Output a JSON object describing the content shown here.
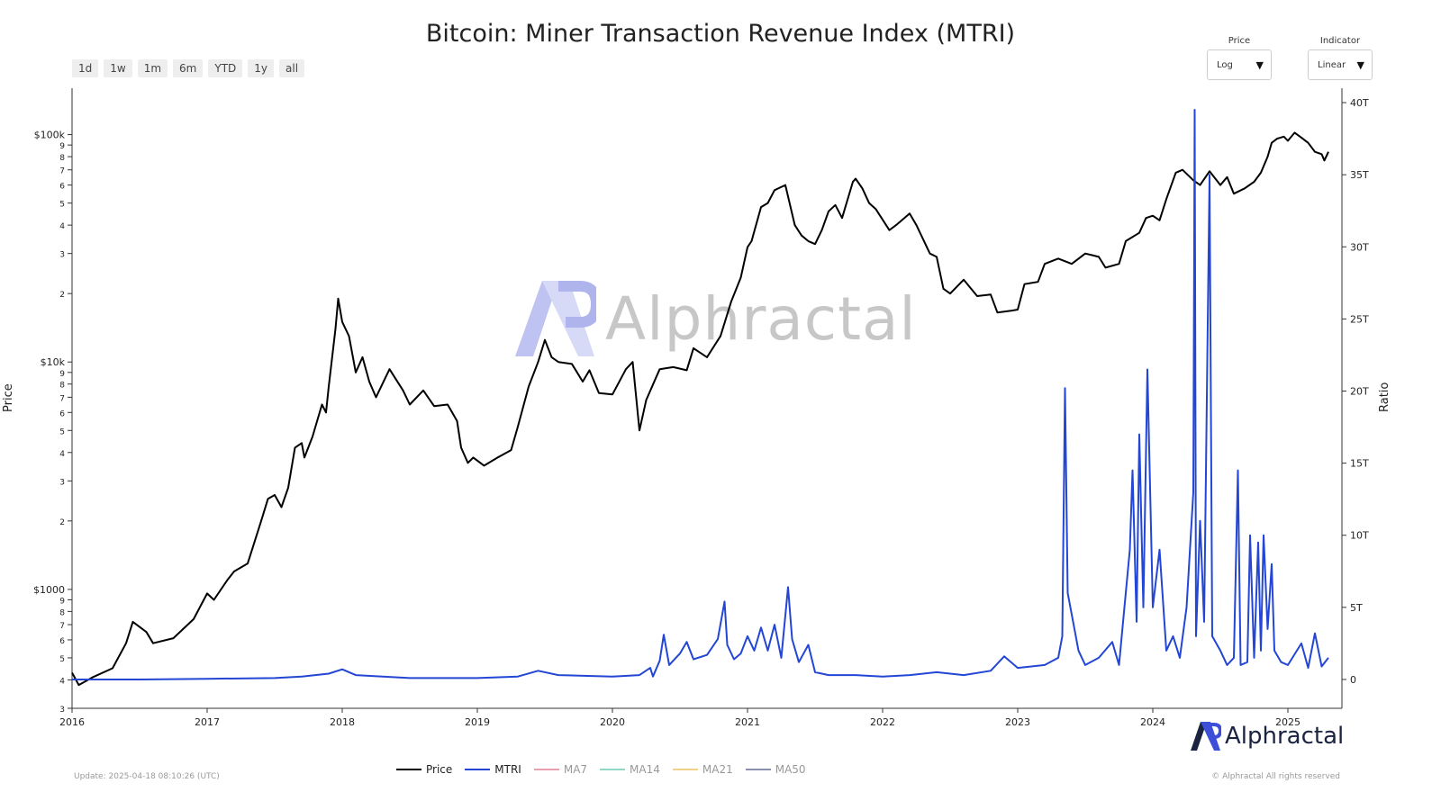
{
  "title": "Bitcoin: Miner Transaction Revenue Index (MTRI)",
  "range_buttons": [
    "1d",
    "1w",
    "1m",
    "6m",
    "YTD",
    "1y",
    "all"
  ],
  "price_select": {
    "label": "Price",
    "value": "Log"
  },
  "indicator_select": {
    "label": "Indicator",
    "value": "Linear"
  },
  "watermark": "Alphractal",
  "brand": "Alphractal",
  "update_text": "Update: 2025-04-18 08:10:26 (UTC)",
  "copyright": "© Alphractal All rights reserved",
  "colors": {
    "price": "#000000",
    "mtri": "#2346d4",
    "ma7": "#e8a0b0",
    "ma14": "#8fd8c8",
    "ma21": "#f2d28a",
    "ma50": "#8a8fb0",
    "brand": "#1a2340",
    "brand_accent": "#3d4fd8"
  },
  "legend": [
    {
      "name": "Price",
      "color": "#000000",
      "active": true
    },
    {
      "name": "MTRI",
      "color": "#2346d4",
      "active": true
    },
    {
      "name": "MA7",
      "color": "#e8a0b0",
      "active": false
    },
    {
      "name": "MA14",
      "color": "#8fd8c8",
      "active": false
    },
    {
      "name": "MA21",
      "color": "#f2d28a",
      "active": false
    },
    {
      "name": "MA50",
      "color": "#8a8fb0",
      "active": false
    }
  ],
  "chart_data": {
    "type": "line",
    "title": "Bitcoin: Miner Transaction Revenue Index (MTRI)",
    "xlabel": "",
    "y_left_label": "Price",
    "y_right_label": "Ratio",
    "y_left_scale": "log",
    "y_right_scale": "linear",
    "x_range": [
      2016.0,
      2025.4
    ],
    "y_left_range": [
      300,
      160000
    ],
    "y_right_range": [
      -2,
      41
    ],
    "x_ticks": [
      "2016",
      "2017",
      "2018",
      "2019",
      "2020",
      "2021",
      "2022",
      "2023",
      "2024",
      "2025"
    ],
    "y_left_ticks": [
      {
        "v": 300,
        "t": "3"
      },
      {
        "v": 400,
        "t": "4"
      },
      {
        "v": 500,
        "t": "5"
      },
      {
        "v": 600,
        "t": "6"
      },
      {
        "v": 700,
        "t": "7"
      },
      {
        "v": 800,
        "t": "8"
      },
      {
        "v": 900,
        "t": "9"
      },
      {
        "v": 1000,
        "t": "$1000"
      },
      {
        "v": 2000,
        "t": "2"
      },
      {
        "v": 3000,
        "t": "3"
      },
      {
        "v": 4000,
        "t": "4"
      },
      {
        "v": 5000,
        "t": "5"
      },
      {
        "v": 6000,
        "t": "6"
      },
      {
        "v": 7000,
        "t": "7"
      },
      {
        "v": 8000,
        "t": "8"
      },
      {
        "v": 9000,
        "t": "9"
      },
      {
        "v": 10000,
        "t": "$10k"
      },
      {
        "v": 20000,
        "t": "2"
      },
      {
        "v": 30000,
        "t": "3"
      },
      {
        "v": 40000,
        "t": "4"
      },
      {
        "v": 50000,
        "t": "5"
      },
      {
        "v": 60000,
        "t": "6"
      },
      {
        "v": 70000,
        "t": "7"
      },
      {
        "v": 80000,
        "t": "8"
      },
      {
        "v": 90000,
        "t": "9"
      },
      {
        "v": 100000,
        "t": "$100k"
      }
    ],
    "y_right_ticks": [
      {
        "v": 0,
        "t": "0"
      },
      {
        "v": 5,
        "t": "5T"
      },
      {
        "v": 10,
        "t": "10T"
      },
      {
        "v": 15,
        "t": "15T"
      },
      {
        "v": 20,
        "t": "20T"
      },
      {
        "v": 25,
        "t": "25T"
      },
      {
        "v": 30,
        "t": "30T"
      },
      {
        "v": 35,
        "t": "35T"
      },
      {
        "v": 40,
        "t": "40T"
      }
    ],
    "series": [
      {
        "name": "Price",
        "axis": "left",
        "points": [
          [
            2016.0,
            430
          ],
          [
            2016.05,
            380
          ],
          [
            2016.15,
            410
          ],
          [
            2016.3,
            450
          ],
          [
            2016.4,
            580
          ],
          [
            2016.45,
            720
          ],
          [
            2016.55,
            650
          ],
          [
            2016.6,
            580
          ],
          [
            2016.75,
            610
          ],
          [
            2016.9,
            740
          ],
          [
            2017.0,
            960
          ],
          [
            2017.05,
            900
          ],
          [
            2017.15,
            1100
          ],
          [
            2017.2,
            1200
          ],
          [
            2017.3,
            1300
          ],
          [
            2017.4,
            2000
          ],
          [
            2017.45,
            2500
          ],
          [
            2017.5,
            2600
          ],
          [
            2017.55,
            2300
          ],
          [
            2017.6,
            2800
          ],
          [
            2017.65,
            4200
          ],
          [
            2017.7,
            4400
          ],
          [
            2017.72,
            3800
          ],
          [
            2017.78,
            4700
          ],
          [
            2017.85,
            6500
          ],
          [
            2017.88,
            6000
          ],
          [
            2017.9,
            7800
          ],
          [
            2017.95,
            14000
          ],
          [
            2017.97,
            19000
          ],
          [
            2018.0,
            15000
          ],
          [
            2018.05,
            13000
          ],
          [
            2018.1,
            9000
          ],
          [
            2018.15,
            10500
          ],
          [
            2018.2,
            8200
          ],
          [
            2018.25,
            7000
          ],
          [
            2018.35,
            9300
          ],
          [
            2018.45,
            7500
          ],
          [
            2018.5,
            6500
          ],
          [
            2018.6,
            7500
          ],
          [
            2018.68,
            6400
          ],
          [
            2018.78,
            6500
          ],
          [
            2018.85,
            5500
          ],
          [
            2018.88,
            4200
          ],
          [
            2018.93,
            3600
          ],
          [
            2018.97,
            3800
          ],
          [
            2019.05,
            3500
          ],
          [
            2019.15,
            3800
          ],
          [
            2019.25,
            4100
          ],
          [
            2019.3,
            5200
          ],
          [
            2019.38,
            7800
          ],
          [
            2019.45,
            10000
          ],
          [
            2019.5,
            12500
          ],
          [
            2019.55,
            10500
          ],
          [
            2019.6,
            10000
          ],
          [
            2019.7,
            9800
          ],
          [
            2019.78,
            8200
          ],
          [
            2019.83,
            9200
          ],
          [
            2019.9,
            7300
          ],
          [
            2020.0,
            7200
          ],
          [
            2020.1,
            9300
          ],
          [
            2020.15,
            10000
          ],
          [
            2020.2,
            5000
          ],
          [
            2020.25,
            6800
          ],
          [
            2020.35,
            9300
          ],
          [
            2020.45,
            9500
          ],
          [
            2020.55,
            9200
          ],
          [
            2020.6,
            11500
          ],
          [
            2020.7,
            10500
          ],
          [
            2020.8,
            13000
          ],
          [
            2020.88,
            18500
          ],
          [
            2020.95,
            23500
          ],
          [
            2021.0,
            32000
          ],
          [
            2021.03,
            34000
          ],
          [
            2021.1,
            48000
          ],
          [
            2021.15,
            50000
          ],
          [
            2021.2,
            57000
          ],
          [
            2021.28,
            60000
          ],
          [
            2021.35,
            40000
          ],
          [
            2021.4,
            36000
          ],
          [
            2021.45,
            34000
          ],
          [
            2021.5,
            33000
          ],
          [
            2021.55,
            38000
          ],
          [
            2021.6,
            46000
          ],
          [
            2021.65,
            49000
          ],
          [
            2021.7,
            43000
          ],
          [
            2021.78,
            62000
          ],
          [
            2021.8,
            64000
          ],
          [
            2021.85,
            58000
          ],
          [
            2021.9,
            50000
          ],
          [
            2021.95,
            47000
          ],
          [
            2022.05,
            38000
          ],
          [
            2022.1,
            40000
          ],
          [
            2022.2,
            45000
          ],
          [
            2022.25,
            40000
          ],
          [
            2022.35,
            30000
          ],
          [
            2022.4,
            29000
          ],
          [
            2022.45,
            21000
          ],
          [
            2022.5,
            20000
          ],
          [
            2022.6,
            23000
          ],
          [
            2022.7,
            19500
          ],
          [
            2022.8,
            19800
          ],
          [
            2022.85,
            16500
          ],
          [
            2022.95,
            16800
          ],
          [
            2023.0,
            17000
          ],
          [
            2023.05,
            22000
          ],
          [
            2023.15,
            22500
          ],
          [
            2023.2,
            27000
          ],
          [
            2023.3,
            28500
          ],
          [
            2023.4,
            27000
          ],
          [
            2023.5,
            30000
          ],
          [
            2023.55,
            29500
          ],
          [
            2023.6,
            29000
          ],
          [
            2023.65,
            26000
          ],
          [
            2023.75,
            27000
          ],
          [
            2023.8,
            34000
          ],
          [
            2023.9,
            37000
          ],
          [
            2023.95,
            43000
          ],
          [
            2024.0,
            44000
          ],
          [
            2024.05,
            42000
          ],
          [
            2024.1,
            52000
          ],
          [
            2024.17,
            68000
          ],
          [
            2024.22,
            70000
          ],
          [
            2024.3,
            63000
          ],
          [
            2024.35,
            60000
          ],
          [
            2024.42,
            69000
          ],
          [
            2024.5,
            60000
          ],
          [
            2024.55,
            65000
          ],
          [
            2024.6,
            55000
          ],
          [
            2024.68,
            58000
          ],
          [
            2024.75,
            62000
          ],
          [
            2024.8,
            68000
          ],
          [
            2024.85,
            80000
          ],
          [
            2024.88,
            92000
          ],
          [
            2024.92,
            96000
          ],
          [
            2024.97,
            98000
          ],
          [
            2025.0,
            94000
          ],
          [
            2025.05,
            102000
          ],
          [
            2025.1,
            97000
          ],
          [
            2025.15,
            92000
          ],
          [
            2025.2,
            84000
          ],
          [
            2025.25,
            82000
          ],
          [
            2025.27,
            77000
          ],
          [
            2025.3,
            84000
          ]
        ]
      },
      {
        "name": "MTRI",
        "axis": "right",
        "points": [
          [
            2016.0,
            0.0
          ],
          [
            2016.5,
            0.0
          ],
          [
            2017.0,
            0.05
          ],
          [
            2017.5,
            0.1
          ],
          [
            2017.7,
            0.2
          ],
          [
            2017.9,
            0.4
          ],
          [
            2018.0,
            0.7
          ],
          [
            2018.1,
            0.3
          ],
          [
            2018.5,
            0.1
          ],
          [
            2019.0,
            0.1
          ],
          [
            2019.3,
            0.2
          ],
          [
            2019.45,
            0.6
          ],
          [
            2019.6,
            0.3
          ],
          [
            2020.0,
            0.2
          ],
          [
            2020.2,
            0.3
          ],
          [
            2020.28,
            0.8
          ],
          [
            2020.3,
            0.2
          ],
          [
            2020.35,
            1.3
          ],
          [
            2020.38,
            3.1
          ],
          [
            2020.42,
            1.0
          ],
          [
            2020.5,
            1.8
          ],
          [
            2020.55,
            2.6
          ],
          [
            2020.6,
            1.4
          ],
          [
            2020.7,
            1.7
          ],
          [
            2020.78,
            2.8
          ],
          [
            2020.83,
            5.4
          ],
          [
            2020.85,
            2.4
          ],
          [
            2020.9,
            1.4
          ],
          [
            2020.95,
            1.8
          ],
          [
            2021.0,
            3.0
          ],
          [
            2021.05,
            2.0
          ],
          [
            2021.1,
            3.6
          ],
          [
            2021.15,
            2.0
          ],
          [
            2021.2,
            3.8
          ],
          [
            2021.25,
            1.5
          ],
          [
            2021.3,
            6.4
          ],
          [
            2021.33,
            2.8
          ],
          [
            2021.38,
            1.2
          ],
          [
            2021.45,
            2.4
          ],
          [
            2021.5,
            0.5
          ],
          [
            2021.6,
            0.3
          ],
          [
            2021.8,
            0.3
          ],
          [
            2022.0,
            0.2
          ],
          [
            2022.2,
            0.3
          ],
          [
            2022.4,
            0.5
          ],
          [
            2022.6,
            0.3
          ],
          [
            2022.8,
            0.6
          ],
          [
            2022.9,
            1.6
          ],
          [
            2023.0,
            0.8
          ],
          [
            2023.2,
            1.0
          ],
          [
            2023.3,
            1.5
          ],
          [
            2023.33,
            3.0
          ],
          [
            2023.35,
            20.2
          ],
          [
            2023.37,
            6.0
          ],
          [
            2023.4,
            4.5
          ],
          [
            2023.45,
            2.0
          ],
          [
            2023.5,
            1.0
          ],
          [
            2023.6,
            1.5
          ],
          [
            2023.7,
            2.6
          ],
          [
            2023.75,
            1.0
          ],
          [
            2023.83,
            9.0
          ],
          [
            2023.85,
            14.5
          ],
          [
            2023.88,
            4.0
          ],
          [
            2023.9,
            17.0
          ],
          [
            2023.93,
            5.0
          ],
          [
            2023.96,
            21.5
          ],
          [
            2024.0,
            5.0
          ],
          [
            2024.05,
            9.0
          ],
          [
            2024.1,
            2.0
          ],
          [
            2024.15,
            3.0
          ],
          [
            2024.2,
            1.5
          ],
          [
            2024.25,
            5.0
          ],
          [
            2024.3,
            13.0
          ],
          [
            2024.31,
            39.5
          ],
          [
            2024.32,
            3.0
          ],
          [
            2024.35,
            11.0
          ],
          [
            2024.38,
            4.0
          ],
          [
            2024.42,
            35.0
          ],
          [
            2024.44,
            3.0
          ],
          [
            2024.5,
            2.0
          ],
          [
            2024.55,
            1.0
          ],
          [
            2024.6,
            1.5
          ],
          [
            2024.63,
            14.5
          ],
          [
            2024.65,
            1.0
          ],
          [
            2024.7,
            1.2
          ],
          [
            2024.72,
            10.0
          ],
          [
            2024.75,
            1.5
          ],
          [
            2024.78,
            9.5
          ],
          [
            2024.8,
            2.0
          ],
          [
            2024.82,
            10.0
          ],
          [
            2024.85,
            3.5
          ],
          [
            2024.88,
            8.0
          ],
          [
            2024.9,
            2.0
          ],
          [
            2024.95,
            1.2
          ],
          [
            2025.0,
            1.0
          ],
          [
            2025.1,
            2.5
          ],
          [
            2025.15,
            0.8
          ],
          [
            2025.2,
            3.2
          ],
          [
            2025.25,
            0.9
          ],
          [
            2025.3,
            1.5
          ]
        ]
      }
    ],
    "legend_position": "bottom-center",
    "grid": false
  }
}
